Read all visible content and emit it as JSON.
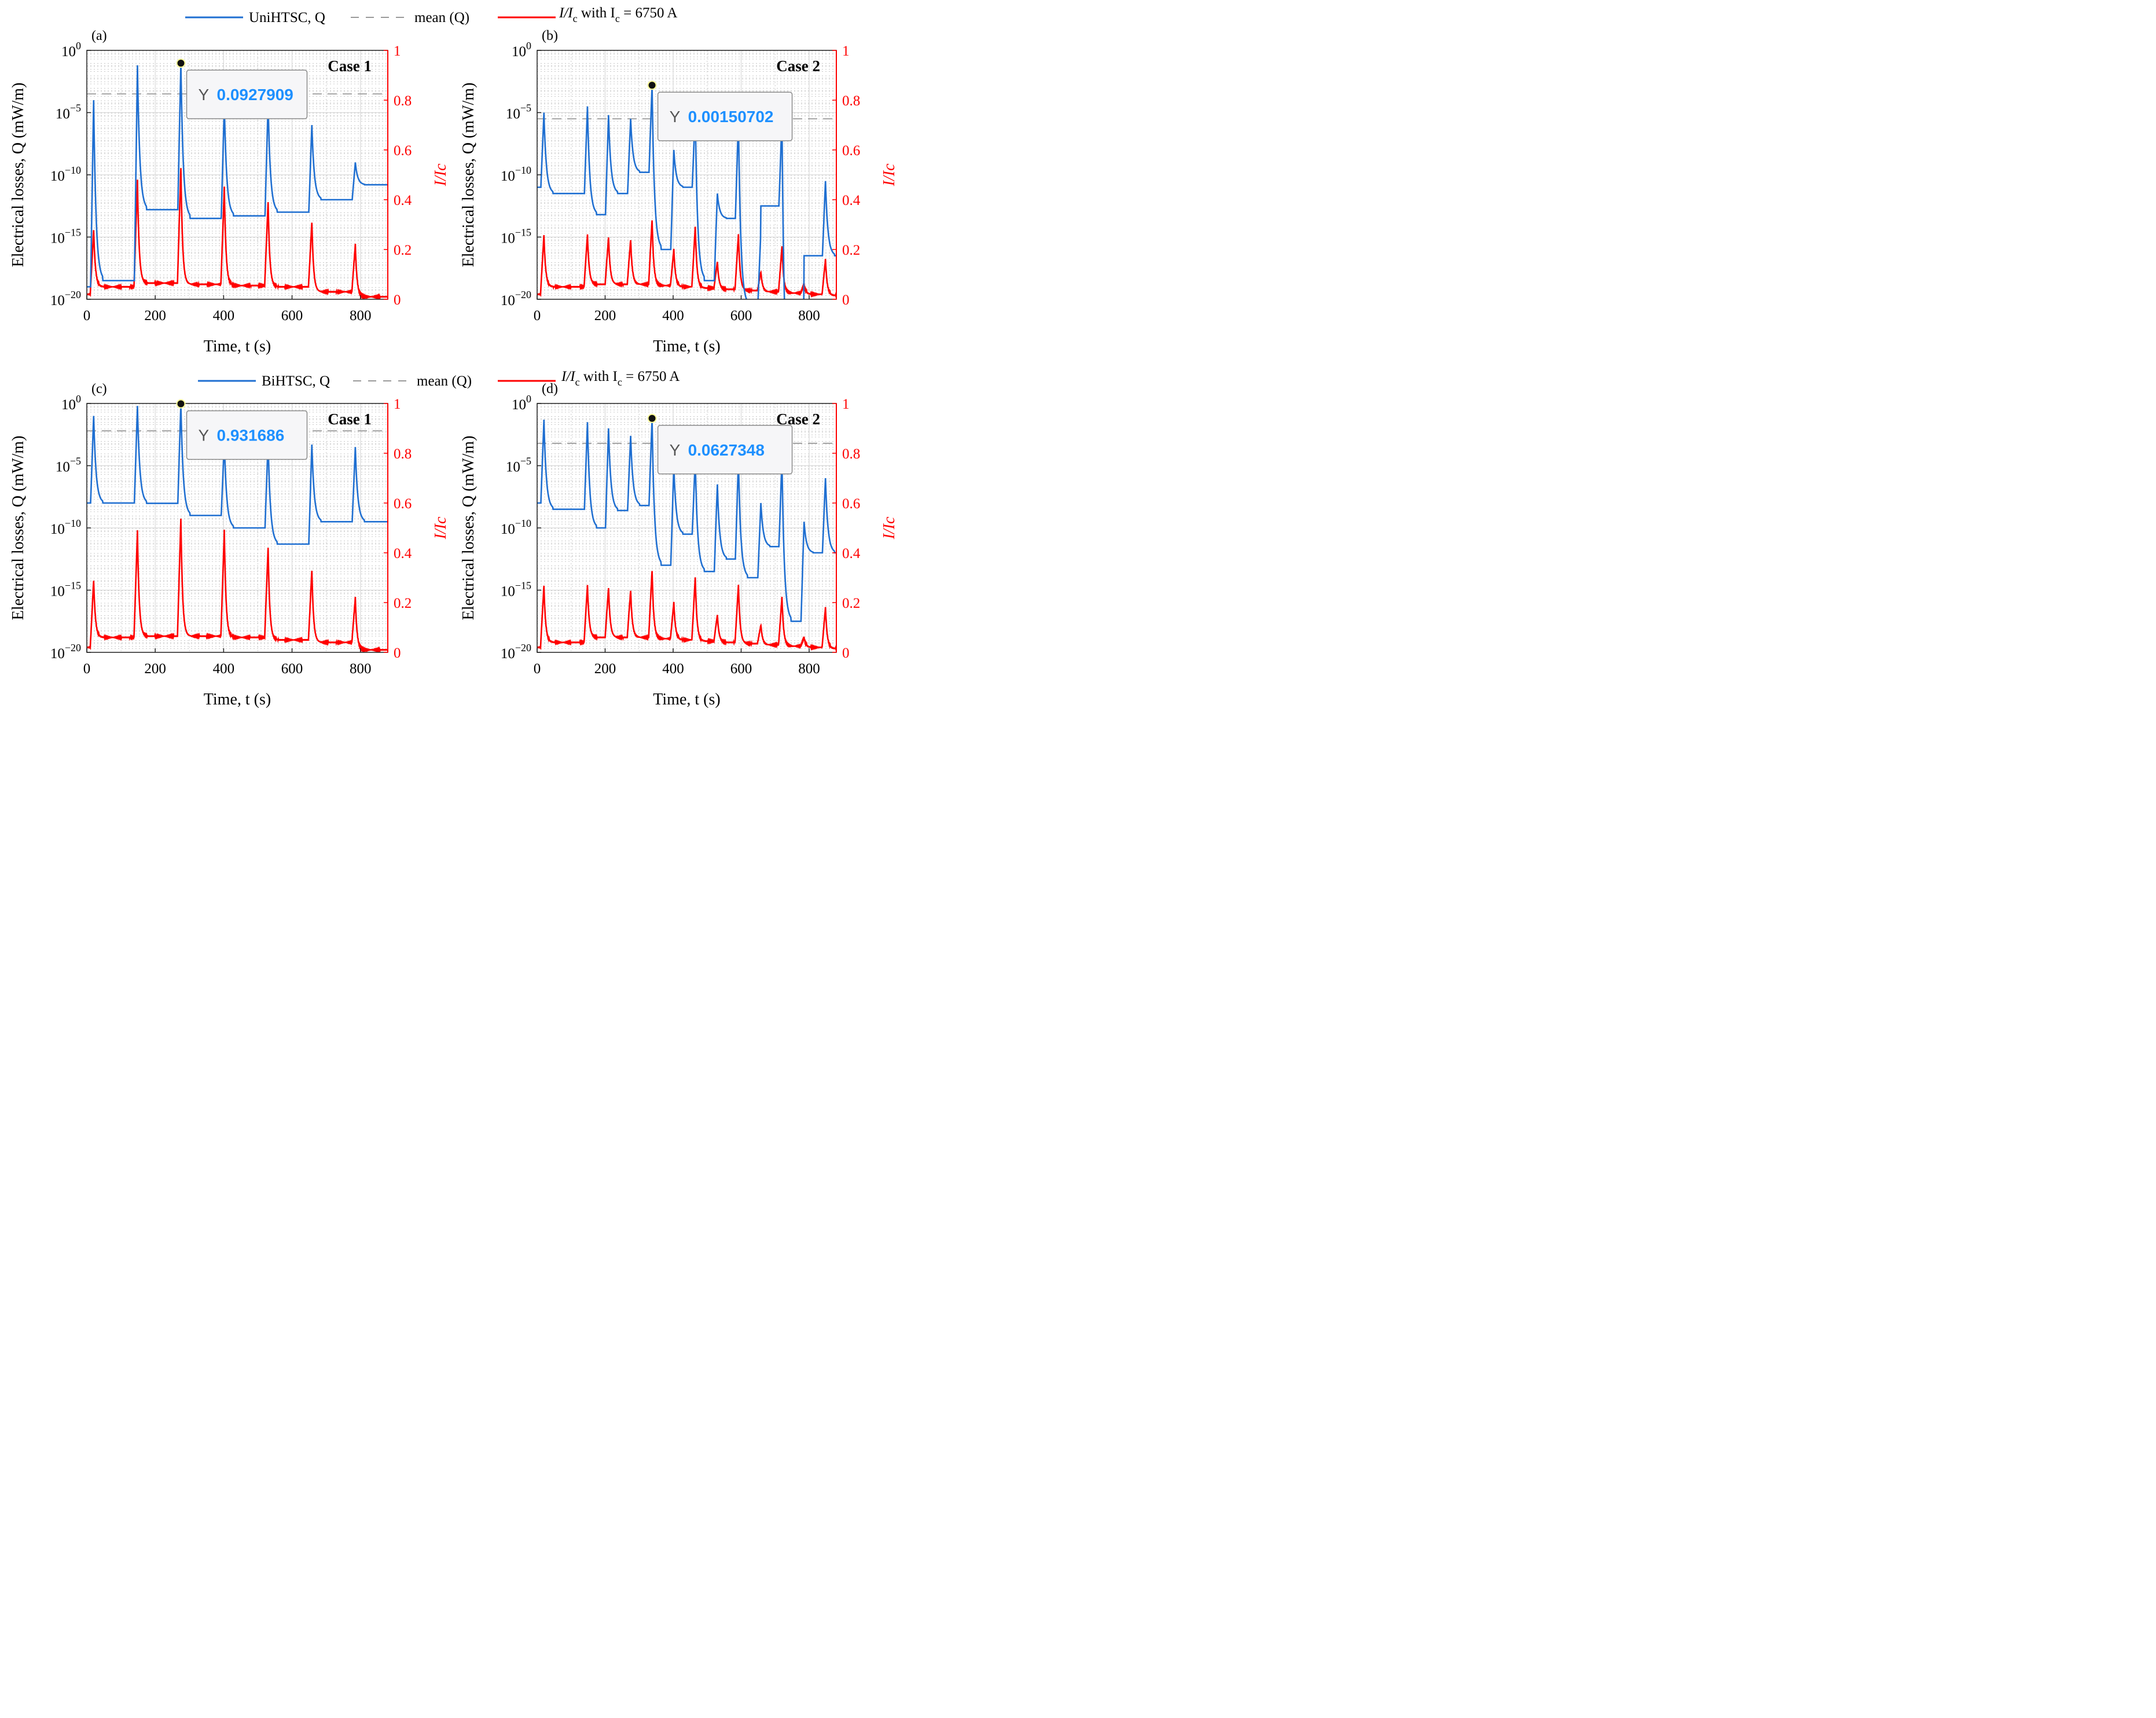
{
  "figure": {
    "legend_top": {
      "series_label": "UniHTSC, Q",
      "mean_label": "mean (Q)",
      "ratio_label": "I/I",
      "ratio_sub": "c",
      "ratio_suffix": " with I",
      "ratio_suffix_sub": "c",
      "ratio_value": " = 6750 A"
    },
    "legend_bottom": {
      "series_label": "BiHTSC, Q",
      "mean_label": "mean (Q)",
      "ratio_label": "I/I",
      "ratio_sub": "c",
      "ratio_suffix": " with I",
      "ratio_suffix_sub": "c",
      "ratio_value": " = 6750 A"
    },
    "colors": {
      "blue": "#1f6fd1",
      "red": "#ff0000",
      "mean": "#999999",
      "tip_value": "#1e90ff"
    }
  },
  "chart_data": [
    {
      "panel": "(a)",
      "case": "Case 1",
      "type": "line",
      "xlabel": "Time, t (s)",
      "ylabel": "Electrical losses, Q (mW/m)",
      "y2label": "I/Ic",
      "xlim": [
        0,
        880
      ],
      "ylim_log10": [
        -20,
        0
      ],
      "y2lim": [
        0,
        1
      ],
      "xticks": [
        "0",
        "200",
        "400",
        "600",
        "800"
      ],
      "yticks_exp": [
        "0",
        "−5",
        "−10",
        "−15",
        "−20"
      ],
      "y2ticks": [
        "1",
        "0.8",
        "0.6",
        "0.4",
        "0.2",
        "0"
      ],
      "tooltip": {
        "x": 275,
        "label": "Y",
        "value": "0.0927909"
      },
      "mean_log10": -3.5,
      "peaks_t": [
        20,
        148,
        275,
        402,
        530,
        658,
        785
      ],
      "blue_peak_log10": [
        -4.0,
        -1.2,
        -1.03,
        -4.3,
        -4.2,
        -6.0,
        -9.0
      ],
      "blue_base_log10": [
        -19.0,
        -18.5,
        -12.8,
        -13.5,
        -13.3,
        -13.0,
        -12.0,
        -10.8
      ],
      "red_peak": [
        0.28,
        0.48,
        0.53,
        0.45,
        0.39,
        0.31,
        0.22
      ],
      "red_base": [
        0.02,
        0.05,
        0.065,
        0.06,
        0.055,
        0.05,
        0.03,
        0.01
      ]
    },
    {
      "panel": "(b)",
      "case": "Case 2",
      "type": "line",
      "xlabel": "Time, t (s)",
      "ylabel": "Electrical losses, Q (mW/m)",
      "y2label": "I/Ic",
      "xlim": [
        0,
        880
      ],
      "ylim_log10": [
        -20,
        0
      ],
      "y2lim": [
        0,
        1
      ],
      "xticks": [
        "0",
        "200",
        "400",
        "600",
        "800"
      ],
      "yticks_exp": [
        "0",
        "−5",
        "−10",
        "−15",
        "−20"
      ],
      "y2ticks": [
        "1",
        "0.8",
        "0.6",
        "0.4",
        "0.2",
        "0"
      ],
      "tooltip": {
        "x": 338,
        "label": "Y",
        "value": "0.00150702"
      },
      "mean_log10": -5.5,
      "peaks_t": [
        20,
        148,
        210,
        275,
        338,
        402,
        465,
        530,
        592,
        658,
        720,
        785,
        848
      ],
      "blue_peak_log10": [
        -5.0,
        -4.5,
        -5.2,
        -5.5,
        -2.8,
        -8.0,
        -5.0,
        -11.5,
        -5.5,
        -14.5,
        -5.5,
        -20.0,
        -10.5
      ],
      "red_peak": [
        0.26,
        0.26,
        0.25,
        0.24,
        0.32,
        0.2,
        0.29,
        0.15,
        0.26,
        0.11,
        0.21,
        0.06,
        0.16
      ],
      "red_base": [
        0.02,
        0.05,
        0.06,
        0.06,
        0.06,
        0.055,
        0.05,
        0.045,
        0.04,
        0.035,
        0.03,
        0.025,
        0.02,
        0.015
      ]
    },
    {
      "panel": "(c)",
      "case": "Case 1",
      "type": "line",
      "xlabel": "Time, t (s)",
      "ylabel": "Electrical losses, Q (mW/m)",
      "y2label": "I/Ic",
      "xlim": [
        0,
        880
      ],
      "ylim_log10": [
        -20,
        0
      ],
      "y2lim": [
        0,
        1
      ],
      "xticks": [
        "0",
        "200",
        "400",
        "600",
        "800"
      ],
      "yticks_exp": [
        "0",
        "−5",
        "−10",
        "−15",
        "−20"
      ],
      "y2ticks": [
        "1",
        "0.8",
        "0.6",
        "0.4",
        "0.2",
        "0"
      ],
      "tooltip": {
        "x": 275,
        "label": "Y",
        "value": "0.931686"
      },
      "mean_log10": -2.2,
      "peaks_t": [
        20,
        148,
        275,
        402,
        530,
        658,
        785
      ],
      "blue_peak_log10": [
        -1.0,
        -0.2,
        -0.03,
        -3.0,
        -3.0,
        -3.3,
        -3.5
      ],
      "red_peak": [
        0.29,
        0.49,
        0.54,
        0.49,
        0.42,
        0.33,
        0.22
      ],
      "red_base": [
        0.02,
        0.06,
        0.065,
        0.065,
        0.06,
        0.05,
        0.04,
        0.01
      ]
    },
    {
      "panel": "(d)",
      "case": "Case 2",
      "type": "line",
      "xlabel": "Time, t (s)",
      "ylabel": "Electrical losses, Q (mW/m)",
      "y2label": "I/Ic",
      "xlim": [
        0,
        880
      ],
      "ylim_log10": [
        -20,
        0
      ],
      "y2lim": [
        0,
        1
      ],
      "xticks": [
        "0",
        "200",
        "400",
        "600",
        "800"
      ],
      "yticks_exp": [
        "0",
        "−5",
        "−10",
        "−15",
        "−20"
      ],
      "y2ticks": [
        "1",
        "0.8",
        "0.6",
        "0.4",
        "0.2",
        "0"
      ],
      "tooltip": {
        "x": 338,
        "label": "Y",
        "value": "0.0627348"
      },
      "mean_log10": -3.2,
      "peaks_t": [
        20,
        148,
        210,
        275,
        338,
        402,
        465,
        530,
        592,
        658,
        720,
        785,
        848
      ],
      "blue_peak_log10": [
        -1.3,
        -1.5,
        -2.0,
        -2.6,
        -1.2,
        -5.0,
        -4.5,
        -6.5,
        -4.5,
        -8.0,
        -4.5,
        -9.5,
        -6.0
      ],
      "red_peak": [
        0.27,
        0.27,
        0.26,
        0.25,
        0.33,
        0.2,
        0.3,
        0.15,
        0.27,
        0.11,
        0.22,
        0.06,
        0.18
      ],
      "red_base": [
        0.02,
        0.04,
        0.06,
        0.06,
        0.06,
        0.055,
        0.05,
        0.045,
        0.04,
        0.035,
        0.03,
        0.025,
        0.02,
        0.015
      ]
    }
  ]
}
